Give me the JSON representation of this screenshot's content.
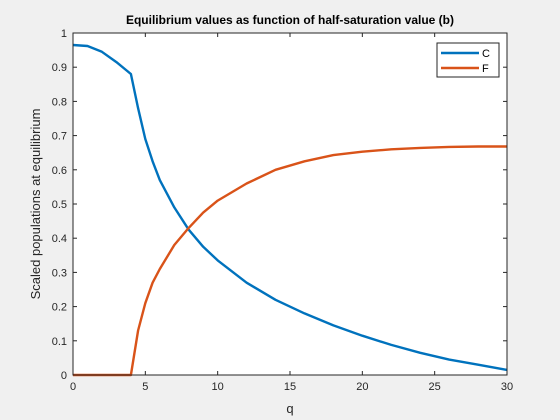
{
  "chart_data": {
    "type": "line",
    "title": "Equilibrium values as function of half-saturation value (b)",
    "xlabel": "q",
    "ylabel": "Scaled populations at equilibrium",
    "xlim": [
      0,
      30
    ],
    "ylim": [
      0,
      1
    ],
    "xticks": [
      "0",
      "5",
      "10",
      "15",
      "20",
      "25",
      "30"
    ],
    "yticks": [
      "0",
      "0.1",
      "0.2",
      "0.3",
      "0.4",
      "0.5",
      "0.6",
      "0.7",
      "0.8",
      "0.9",
      "1"
    ],
    "grid": false,
    "legend_position": "top-right",
    "colors": {
      "C": "#0072BD",
      "F": "#D95319",
      "axes_bg": "#ffffff",
      "figure_bg": "#f0f0f0"
    },
    "series": [
      {
        "name": "C",
        "x": [
          0,
          1,
          2,
          3,
          4,
          4.5,
          5,
          5.5,
          6,
          7,
          8,
          9,
          10,
          12,
          14,
          16,
          18,
          20,
          22,
          24,
          26,
          28,
          30
        ],
        "y": [
          0.965,
          0.962,
          0.945,
          0.915,
          0.88,
          0.78,
          0.69,
          0.625,
          0.57,
          0.49,
          0.425,
          0.375,
          0.335,
          0.27,
          0.22,
          0.18,
          0.145,
          0.115,
          0.088,
          0.065,
          0.045,
          0.03,
          0.015
        ]
      },
      {
        "name": "F",
        "x": [
          0,
          1,
          2,
          3,
          4,
          4.5,
          5,
          5.5,
          6,
          7,
          8,
          9,
          10,
          12,
          14,
          16,
          18,
          20,
          22,
          24,
          26,
          28,
          30
        ],
        "y": [
          0,
          0,
          0,
          0,
          0,
          0.13,
          0.21,
          0.27,
          0.31,
          0.38,
          0.43,
          0.475,
          0.51,
          0.56,
          0.6,
          0.625,
          0.643,
          0.653,
          0.66,
          0.664,
          0.667,
          0.668,
          0.668
        ]
      }
    ]
  }
}
